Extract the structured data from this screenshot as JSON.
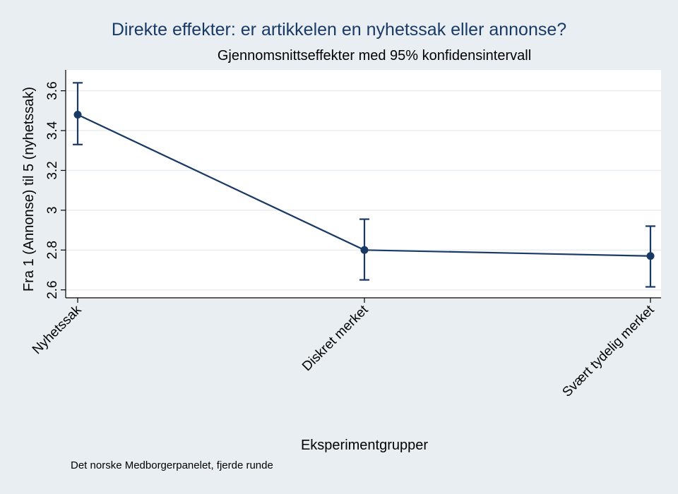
{
  "chart_data": {
    "type": "line",
    "title": "Direkte effekter: er artikkelen en nyhetssak eller annonse?",
    "subtitle": "Gjennomsnittseffekter med 95% konfidensintervall",
    "xlabel": "Eksperimentgrupper",
    "ylabel": "Fra 1 (Annonse) til 5 (nyhetssak)",
    "note": "Det norske Medborgerpanelet, fjerde runde",
    "categories": [
      "Nyhetssak",
      "Diskret merket",
      "Svært tydelig merket"
    ],
    "values": [
      3.48,
      2.8,
      2.77
    ],
    "ci_lower": [
      3.33,
      2.65,
      2.615
    ],
    "ci_upper": [
      3.64,
      2.955,
      2.92
    ],
    "yticks": [
      2.6,
      2.8,
      3,
      3.2,
      3.4,
      3.6
    ],
    "ytick_labels": [
      "2.6",
      "2.8",
      "3",
      "3.2",
      "3.4",
      "3.6"
    ],
    "ylim": [
      2.56,
      3.705
    ],
    "grid": true,
    "colors": {
      "series": "#1a3a66",
      "grid": "#e8edf1",
      "plot_background": "#ffffff",
      "figure_background": "#e9eef2"
    }
  }
}
